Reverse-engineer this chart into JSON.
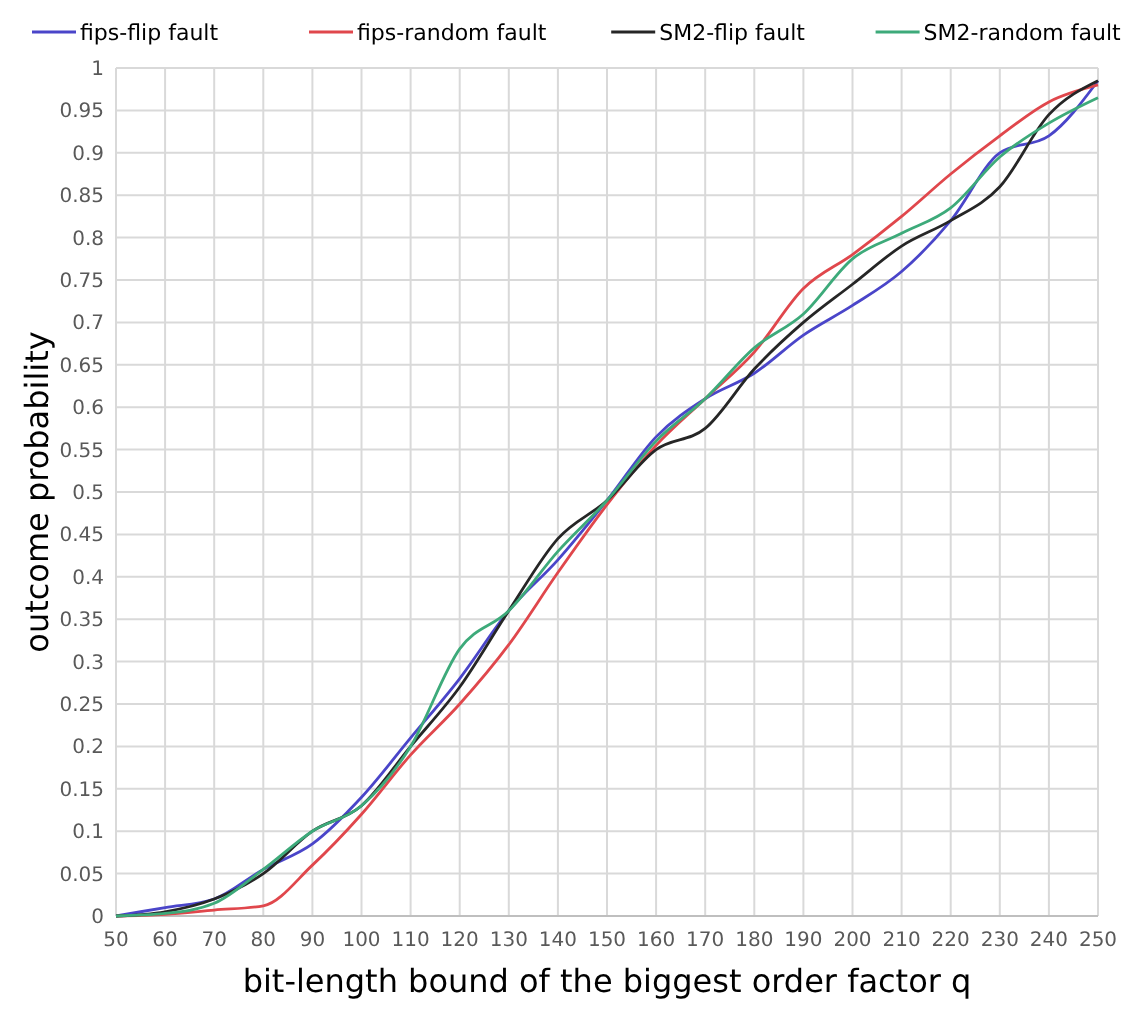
{
  "chart_data": {
    "type": "line",
    "xlabel": "bit-length bound of the biggest order factor q",
    "ylabel": "outcome probability",
    "x": [
      50,
      60,
      70,
      80,
      90,
      100,
      110,
      120,
      130,
      140,
      150,
      160,
      170,
      180,
      190,
      200,
      210,
      220,
      230,
      240,
      250
    ],
    "series": [
      {
        "name": "fips-flip fault",
        "color": "#4a45c9",
        "values": [
          0,
          0.01,
          0.02,
          0.055,
          0.085,
          0.14,
          0.21,
          0.28,
          0.36,
          0.42,
          0.49,
          0.565,
          0.61,
          0.64,
          0.685,
          0.72,
          0.76,
          0.82,
          0.9,
          0.92,
          0.985
        ]
      },
      {
        "name": "fips-random fault",
        "color": "#e0474c",
        "values": [
          0,
          0.002,
          0.007,
          0.012,
          0.06,
          0.12,
          0.19,
          0.25,
          0.32,
          0.405,
          0.485,
          0.555,
          0.61,
          0.665,
          0.74,
          0.78,
          0.825,
          0.875,
          0.92,
          0.96,
          0.98
        ]
      },
      {
        "name": "SM2-flip fault",
        "color": "#262626",
        "values": [
          0,
          0.005,
          0.02,
          0.05,
          0.1,
          0.13,
          0.2,
          0.27,
          0.36,
          0.445,
          0.49,
          0.55,
          0.575,
          0.645,
          0.7,
          0.745,
          0.79,
          0.82,
          0.86,
          0.945,
          0.985
        ]
      },
      {
        "name": "SM2-random fault",
        "color": "#3daa7a",
        "values": [
          0,
          0.003,
          0.015,
          0.055,
          0.1,
          0.13,
          0.2,
          0.315,
          0.36,
          0.43,
          0.49,
          0.56,
          0.61,
          0.67,
          0.71,
          0.775,
          0.805,
          0.835,
          0.895,
          0.935,
          0.965
        ]
      }
    ],
    "xlim": [
      50,
      250
    ],
    "xticks": [
      50,
      60,
      70,
      80,
      90,
      100,
      110,
      120,
      130,
      140,
      150,
      160,
      170,
      180,
      190,
      200,
      210,
      220,
      230,
      240,
      250
    ],
    "ylim": [
      0,
      1
    ],
    "yticks": [
      0,
      0.05,
      0.1,
      0.15,
      0.2,
      0.25,
      0.3,
      0.35,
      0.4,
      0.45,
      0.5,
      0.55,
      0.6,
      0.65,
      0.7,
      0.75,
      0.8,
      0.85,
      0.9,
      0.95,
      1
    ],
    "grid": true,
    "legend": "top",
    "marker": "none",
    "line_style": "solid"
  }
}
